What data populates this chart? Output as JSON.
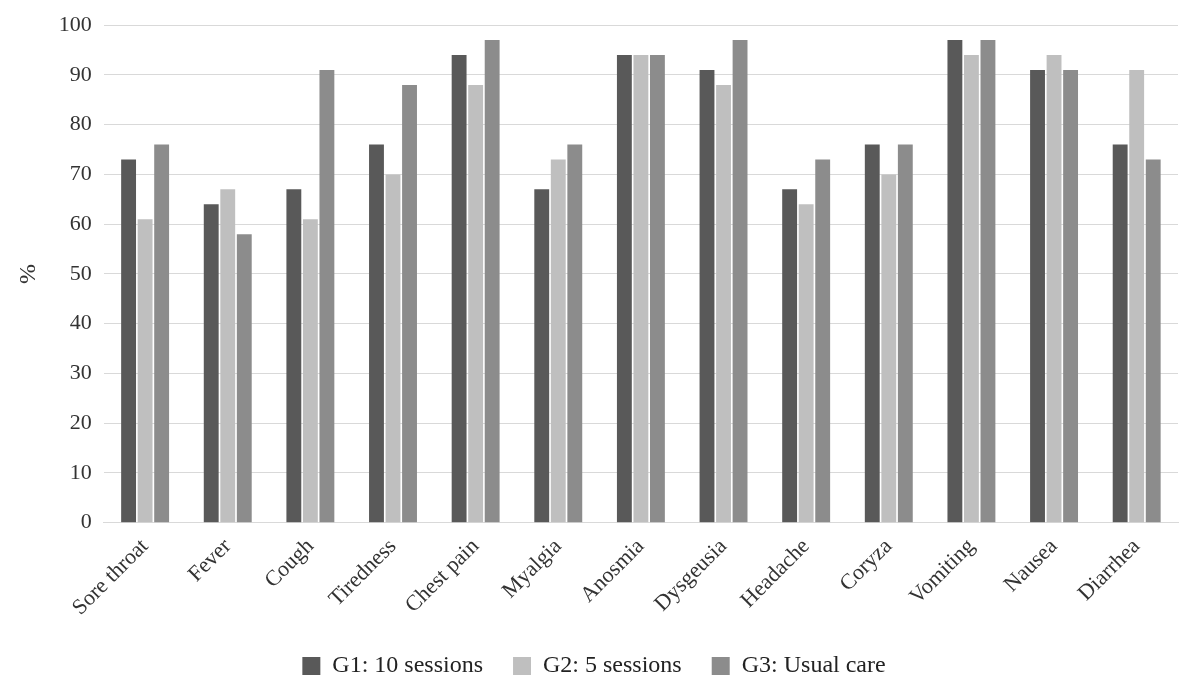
{
  "chart_data": {
    "type": "bar",
    "ylabel": "%",
    "categories": [
      "Sore throat",
      "Fever",
      "Cough",
      "Tiredness",
      "Chest pain",
      "Myalgia",
      "Anosmia",
      "Dysgeusia",
      "Headache",
      "Coryza",
      "Vomiting",
      "Nausea",
      "Diarrhea"
    ],
    "series": [
      {
        "name": "G1: 10 sessions",
        "color": "#595959",
        "values": [
          73,
          64,
          67,
          76,
          94,
          67,
          94,
          91,
          67,
          76,
          97,
          91,
          76
        ]
      },
      {
        "name": "G2: 5 sessions",
        "color": "#bfbfbf",
        "values": [
          61,
          67,
          61,
          70,
          88,
          73,
          94,
          88,
          64,
          70,
          94,
          94,
          91
        ]
      },
      {
        "name": "G3: Usual care",
        "color": "#8c8c8c",
        "values": [
          76,
          58,
          91,
          88,
          97,
          76,
          94,
          97,
          73,
          76,
          97,
          91,
          73
        ]
      }
    ],
    "ylim": [
      0,
      100
    ],
    "yticks": [
      0,
      10,
      20,
      30,
      40,
      50,
      60,
      70,
      80,
      90,
      100
    ],
    "grid": "y",
    "legend": "bottom"
  }
}
